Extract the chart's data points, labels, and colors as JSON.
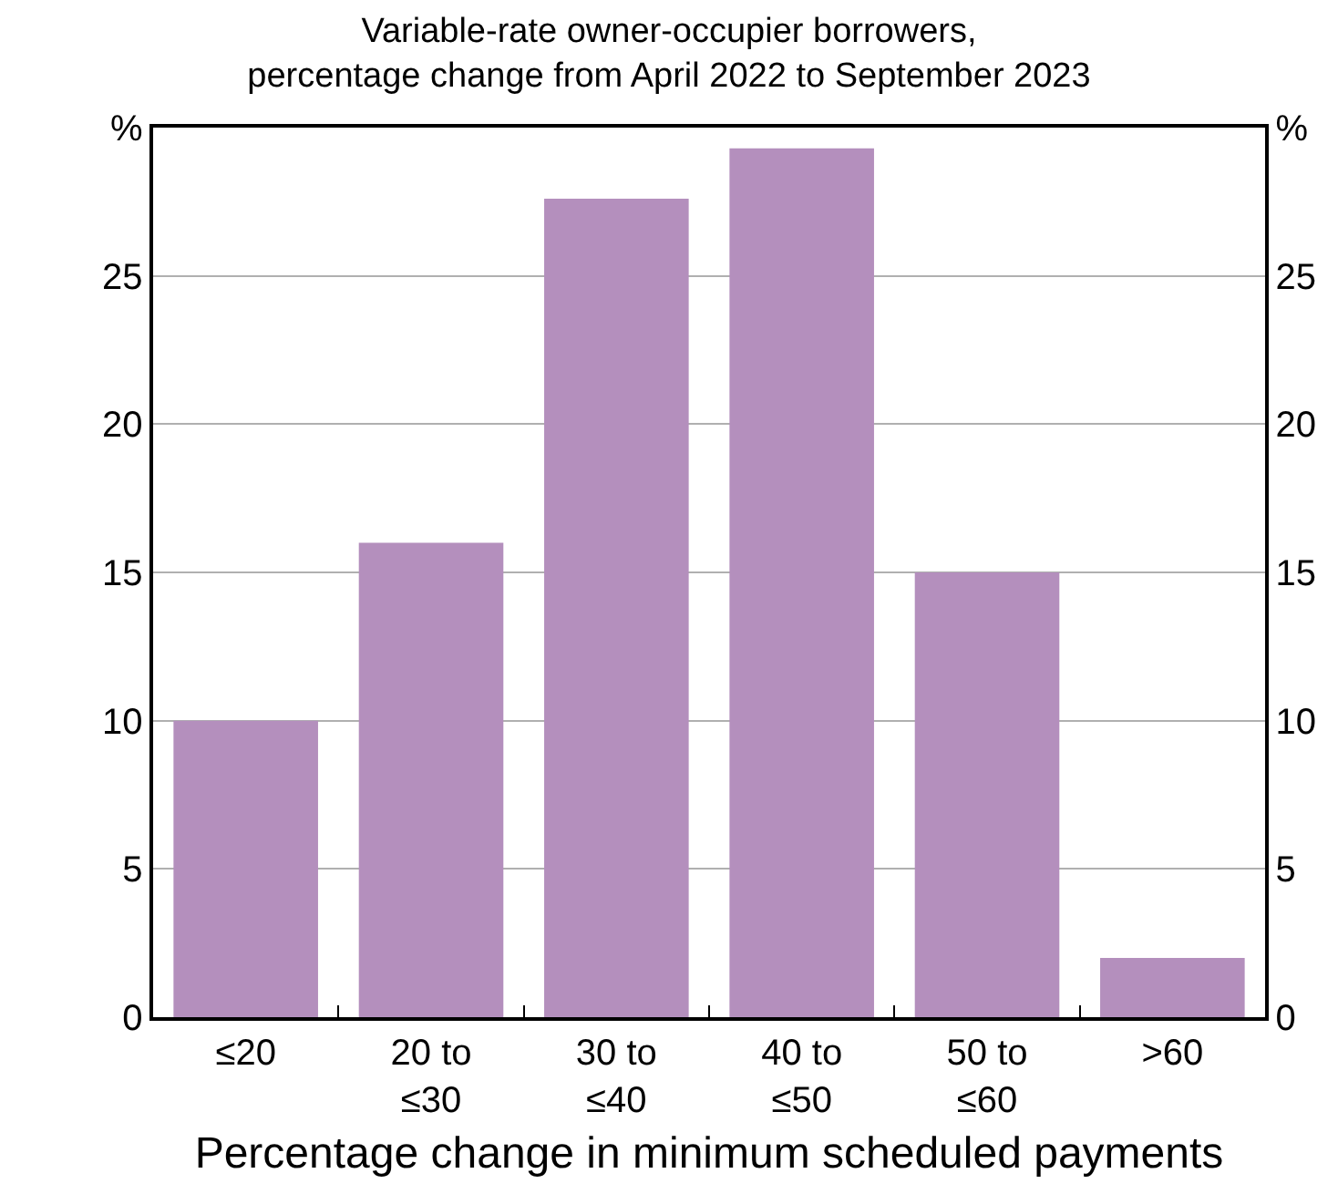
{
  "chart_data": {
    "type": "bar",
    "subtitle": "Variable-rate owner-occupier borrowers,\npercentage change from April 2022 to September 2023",
    "xlabel": "Percentage change in minimum scheduled payments",
    "categories": [
      "≤20",
      "20 to\n≤30",
      "30 to\n≤40",
      "40 to\n≤50",
      "50 to\n≤60",
      ">60"
    ],
    "values": [
      10,
      16,
      27.6,
      29.3,
      15,
      2
    ],
    "color": "#b48fbd",
    "ylim": [
      0,
      30
    ],
    "yticks": [
      0,
      5,
      10,
      15,
      20,
      25,
      {
        "value": 30,
        "label": "%"
      }
    ],
    "y2lim": [
      0,
      30
    ],
    "y2ticks": [
      0,
      5,
      10,
      15,
      20,
      25,
      {
        "value": 30,
        "label": "%"
      }
    ],
    "grid": "y",
    "legend": false
  }
}
